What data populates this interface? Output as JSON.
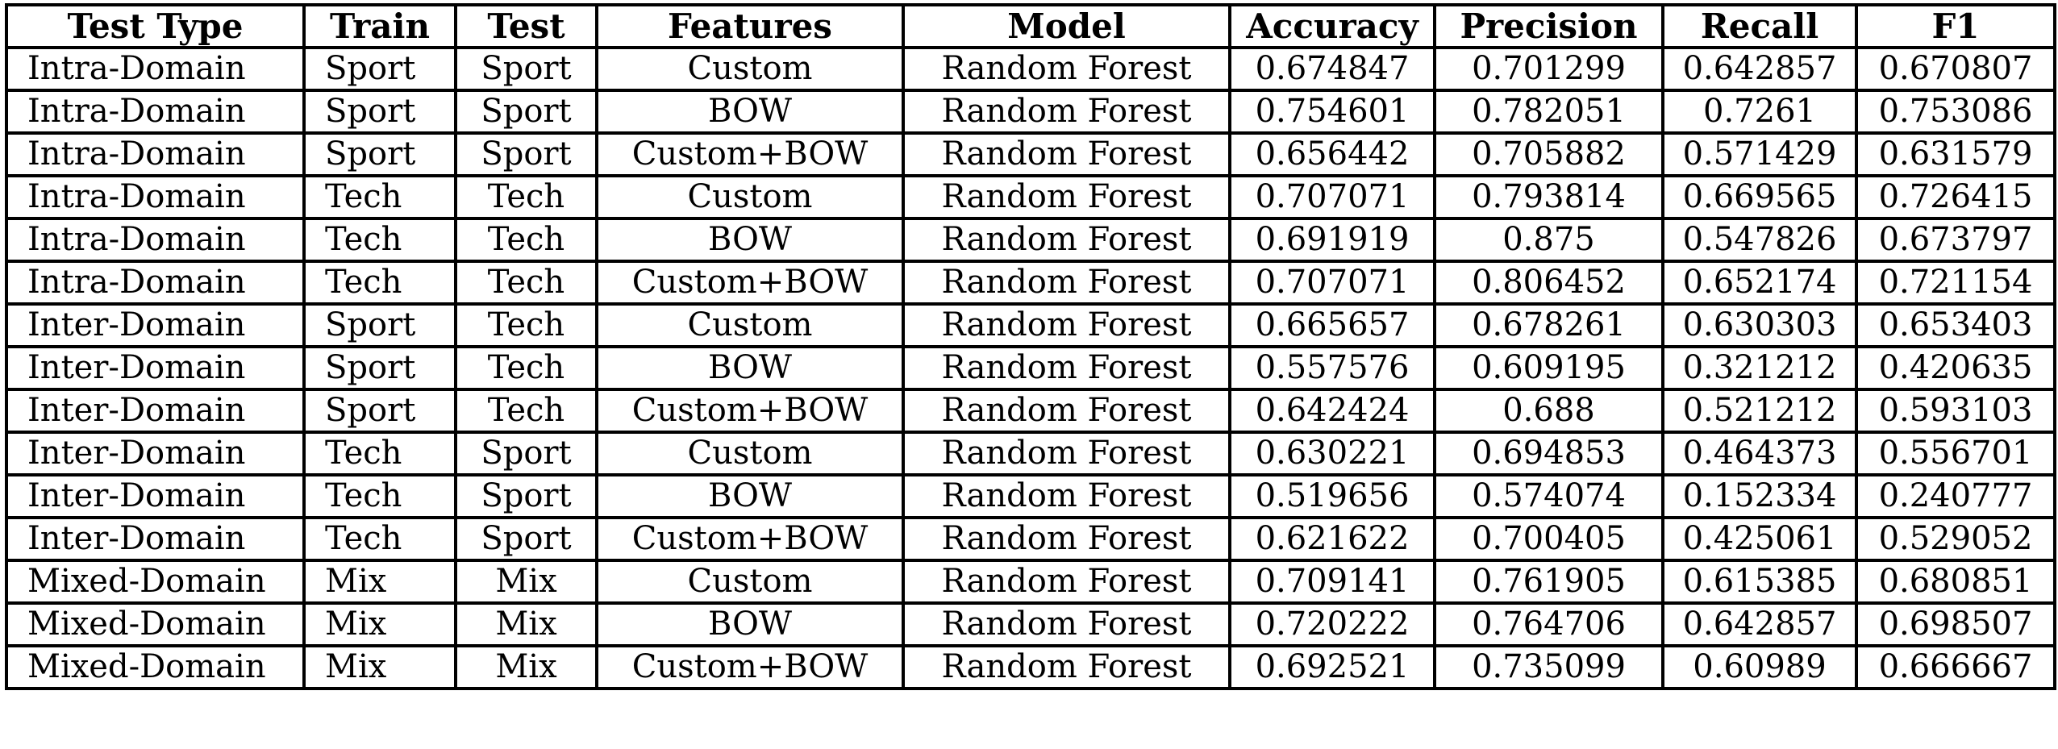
{
  "table": {
    "headers": [
      "Test Type",
      "Train",
      "Test",
      "Features",
      "Model",
      "Accuracy",
      "Precision",
      "Recall",
      "F1"
    ],
    "rows": [
      [
        "Intra-Domain",
        "Sport",
        "Sport",
        "Custom",
        "Random Forest",
        "0.674847",
        "0.701299",
        "0.642857",
        "0.670807"
      ],
      [
        "Intra-Domain",
        "Sport",
        "Sport",
        "BOW",
        "Random Forest",
        "0.754601",
        "0.782051",
        "0.7261",
        "0.753086"
      ],
      [
        "Intra-Domain",
        "Sport",
        "Sport",
        "Custom+BOW",
        "Random Forest",
        "0.656442",
        "0.705882",
        "0.571429",
        "0.631579"
      ],
      [
        "Intra-Domain",
        "Tech",
        "Tech",
        "Custom",
        "Random Forest",
        "0.707071",
        "0.793814",
        "0.669565",
        "0.726415"
      ],
      [
        "Intra-Domain",
        "Tech",
        "Tech",
        "BOW",
        "Random Forest",
        "0.691919",
        "0.875",
        "0.547826",
        "0.673797"
      ],
      [
        "Intra-Domain",
        "Tech",
        "Tech",
        "Custom+BOW",
        "Random Forest",
        "0.707071",
        "0.806452",
        "0.652174",
        "0.721154"
      ],
      [
        "Inter-Domain",
        "Sport",
        "Tech",
        "Custom",
        "Random Forest",
        "0.665657",
        "0.678261",
        "0.630303",
        "0.653403"
      ],
      [
        "Inter-Domain",
        "Sport",
        "Tech",
        "BOW",
        "Random Forest",
        "0.557576",
        "0.609195",
        "0.321212",
        "0.420635"
      ],
      [
        "Inter-Domain",
        "Sport",
        "Tech",
        "Custom+BOW",
        "Random Forest",
        "0.642424",
        "0.688",
        "0.521212",
        "0.593103"
      ],
      [
        "Inter-Domain",
        "Tech",
        "Sport",
        "Custom",
        "Random Forest",
        "0.630221",
        "0.694853",
        "0.464373",
        "0.556701"
      ],
      [
        "Inter-Domain",
        "Tech",
        "Sport",
        "BOW",
        "Random Forest",
        "0.519656",
        "0.574074",
        "0.152334",
        "0.240777"
      ],
      [
        "Inter-Domain",
        "Tech",
        "Sport",
        "Custom+BOW",
        "Random Forest",
        "0.621622",
        "0.700405",
        "0.425061",
        "0.529052"
      ],
      [
        "Mixed-Domain",
        "Mix",
        "Mix",
        "Custom",
        "Random Forest",
        "0.709141",
        "0.761905",
        "0.615385",
        "0.680851"
      ],
      [
        "Mixed-Domain",
        "Mix",
        "Mix",
        "BOW",
        "Random Forest",
        "0.720222",
        "0.764706",
        "0.642857",
        "0.698507"
      ],
      [
        "Mixed-Domain",
        "Mix",
        "Mix",
        "Custom+BOW",
        "Random Forest",
        "0.692521",
        "0.735099",
        "0.60989",
        "0.666667"
      ]
    ]
  }
}
